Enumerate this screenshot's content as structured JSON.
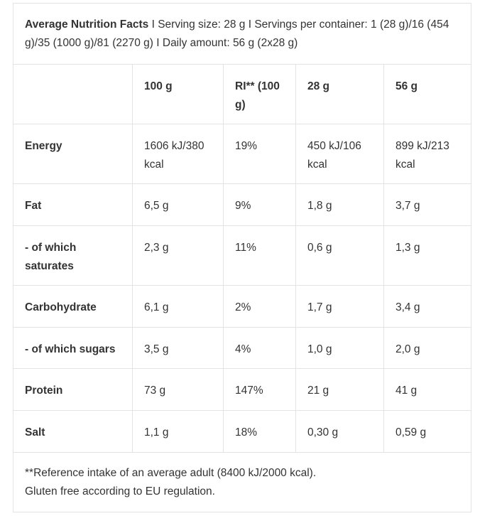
{
  "header": {
    "title": "Average Nutrition Facts",
    "details": " I Serving size: 28 g I Servings per container: 1 (28 g)/16 (454 g)/35 (1000 g)/81 (2270 g) I Daily amount: 56 g (2x28 g)"
  },
  "table": {
    "columns": [
      "",
      "100 g",
      "RI** (100 g)",
      "28 g",
      "56 g"
    ],
    "rows": [
      {
        "label": "Energy",
        "values": [
          "1606 kJ/380 kcal",
          "19%",
          "450 kJ/106 kcal",
          "899 kJ/213 kcal"
        ]
      },
      {
        "label": "Fat",
        "values": [
          "6,5 g",
          "9%",
          "1,8 g",
          "3,7 g"
        ]
      },
      {
        "label": "- of which saturates",
        "values": [
          "2,3 g",
          "11%",
          "0,6 g",
          "1,3 g"
        ]
      },
      {
        "label": "Carbohydrate",
        "values": [
          "6,1 g",
          "2%",
          "1,7 g",
          "3,4 g"
        ]
      },
      {
        "label": "- of which sugars",
        "values": [
          "3,5 g",
          "4%",
          "1,0 g",
          "2,0 g"
        ]
      },
      {
        "label": "Protein",
        "values": [
          "73 g",
          "147%",
          "21 g",
          "41 g"
        ]
      },
      {
        "label": "Salt",
        "values": [
          "1,1 g",
          "18%",
          "0,30 g",
          "0,59 g"
        ]
      }
    ]
  },
  "footer": {
    "reference_note": "**Reference intake of an average adult (8400 kJ/2000 kcal).",
    "gluten_note": "Gluten free according to EU regulation."
  }
}
